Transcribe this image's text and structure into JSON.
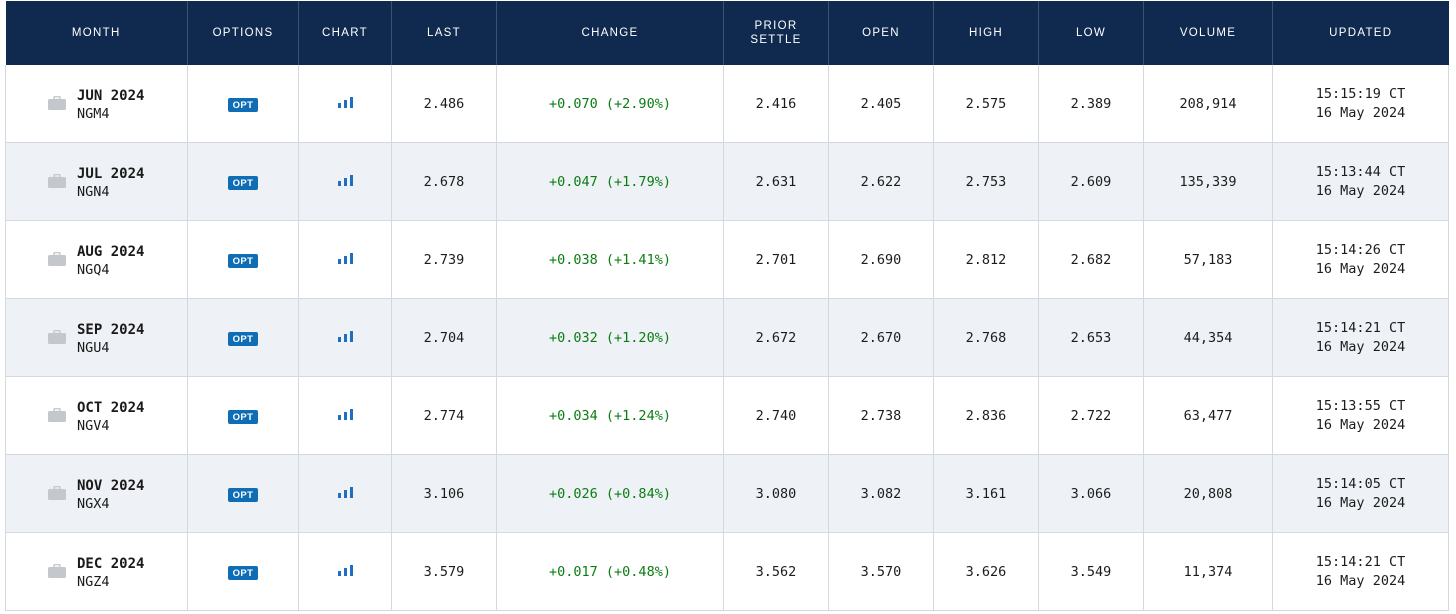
{
  "table": {
    "headers": {
      "month": "MONTH",
      "options": "OPTIONS",
      "chart": "CHART",
      "last": "LAST",
      "change": "CHANGE",
      "prior_settle_1": "PRIOR",
      "prior_settle_2": "SETTLE",
      "open": "OPEN",
      "high": "HIGH",
      "low": "LOW",
      "volume": "VOLUME",
      "updated": "UPDATED"
    },
    "rows": [
      {
        "month": "JUN 2024",
        "code": "NGM4",
        "opt": "OPT",
        "last": "2.486",
        "change": "+0.070 (+2.90%)",
        "prior_settle": "2.416",
        "open": "2.405",
        "high": "2.575",
        "low": "2.389",
        "volume": "208,914",
        "time": "15:15:19 CT",
        "date": "16 May 2024"
      },
      {
        "month": "JUL 2024",
        "code": "NGN4",
        "opt": "OPT",
        "last": "2.678",
        "change": "+0.047 (+1.79%)",
        "prior_settle": "2.631",
        "open": "2.622",
        "high": "2.753",
        "low": "2.609",
        "volume": "135,339",
        "time": "15:13:44 CT",
        "date": "16 May 2024"
      },
      {
        "month": "AUG 2024",
        "code": "NGQ4",
        "opt": "OPT",
        "last": "2.739",
        "change": "+0.038 (+1.41%)",
        "prior_settle": "2.701",
        "open": "2.690",
        "high": "2.812",
        "low": "2.682",
        "volume": "57,183",
        "time": "15:14:26 CT",
        "date": "16 May 2024"
      },
      {
        "month": "SEP 2024",
        "code": "NGU4",
        "opt": "OPT",
        "last": "2.704",
        "change": "+0.032 (+1.20%)",
        "prior_settle": "2.672",
        "open": "2.670",
        "high": "2.768",
        "low": "2.653",
        "volume": "44,354",
        "time": "15:14:21 CT",
        "date": "16 May 2024"
      },
      {
        "month": "OCT 2024",
        "code": "NGV4",
        "opt": "OPT",
        "last": "2.774",
        "change": "+0.034 (+1.24%)",
        "prior_settle": "2.740",
        "open": "2.738",
        "high": "2.836",
        "low": "2.722",
        "volume": "63,477",
        "time": "15:13:55 CT",
        "date": "16 May 2024"
      },
      {
        "month": "NOV 2024",
        "code": "NGX4",
        "opt": "OPT",
        "last": "3.106",
        "change": "+0.026 (+0.84%)",
        "prior_settle": "3.080",
        "open": "3.082",
        "high": "3.161",
        "low": "3.066",
        "volume": "20,808",
        "time": "15:14:05 CT",
        "date": "16 May 2024"
      },
      {
        "month": "DEC 2024",
        "code": "NGZ4",
        "opt": "OPT",
        "last": "3.579",
        "change": "+0.017 (+0.48%)",
        "prior_settle": "3.562",
        "open": "3.570",
        "high": "3.626",
        "low": "3.549",
        "volume": "11,374",
        "time": "15:14:21 CT",
        "date": "16 May 2024"
      }
    ]
  },
  "colors": {
    "header_bg": "#0f2a4e",
    "positive_change": "#0a7d12",
    "opt_badge": "#0e6db5",
    "row_alt_bg": "#eef2f6"
  },
  "icons": {
    "month": "briefcase-icon",
    "chart": "bar-chart-icon"
  }
}
